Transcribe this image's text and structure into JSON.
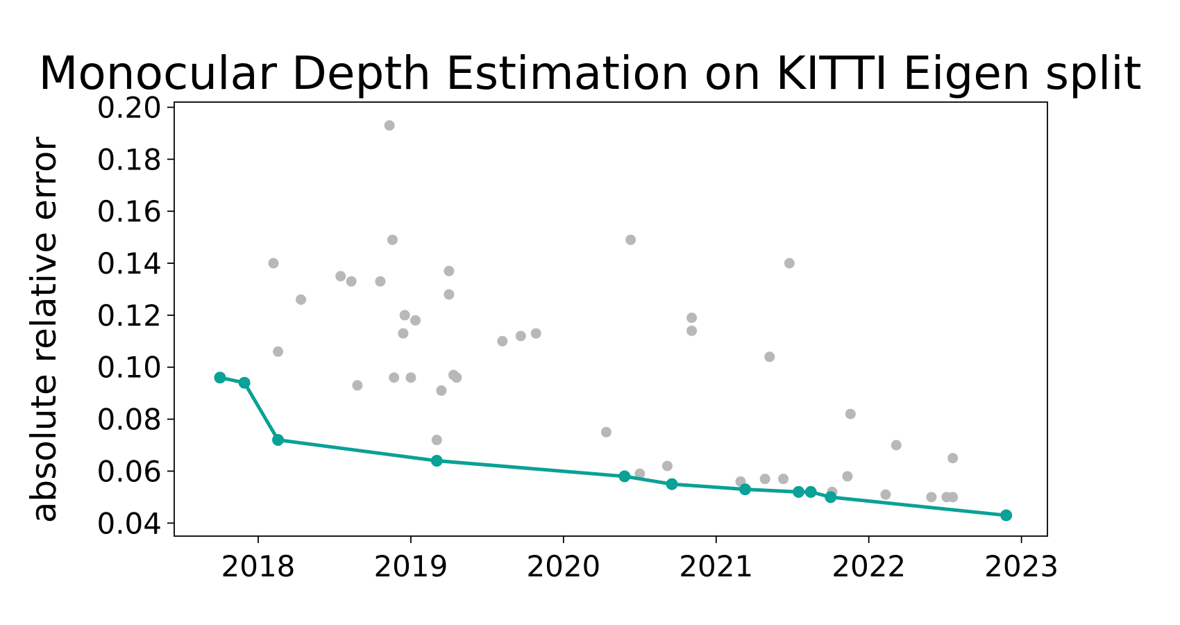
{
  "chart_data": {
    "type": "scatter",
    "title": "Monocular Depth Estimation on KITTI Eigen split",
    "xlabel": "",
    "ylabel": "absolute relative error",
    "xlim": [
      2017.45,
      2023.17
    ],
    "ylim": [
      0.035,
      0.202
    ],
    "x_ticks": [
      2018,
      2019,
      2020,
      2021,
      2022,
      2023
    ],
    "y_ticks": [
      0.04,
      0.06,
      0.08,
      0.1,
      0.12,
      0.14,
      0.16,
      0.18,
      0.2
    ],
    "y_tick_labels": [
      "0.04",
      "0.06",
      "0.08",
      "0.10",
      "0.12",
      "0.14",
      "0.16",
      "0.18",
      "0.20"
    ],
    "grid": false,
    "legend": "none",
    "colors": {
      "others": "#b8b8b8",
      "sota": "#0aa196"
    },
    "series": [
      {
        "kind": "scatter",
        "points": [
          [
            2018.1,
            0.14
          ],
          [
            2018.13,
            0.106
          ],
          [
            2018.28,
            0.126
          ],
          [
            2018.54,
            0.135
          ],
          [
            2018.61,
            0.133
          ],
          [
            2018.65,
            0.093
          ],
          [
            2018.8,
            0.133
          ],
          [
            2018.86,
            0.193
          ],
          [
            2018.88,
            0.149
          ],
          [
            2018.89,
            0.096
          ],
          [
            2018.95,
            0.113
          ],
          [
            2018.96,
            0.12
          ],
          [
            2019.0,
            0.096
          ],
          [
            2019.03,
            0.118
          ],
          [
            2019.17,
            0.072
          ],
          [
            2019.2,
            0.091
          ],
          [
            2019.25,
            0.137
          ],
          [
            2019.25,
            0.128
          ],
          [
            2019.28,
            0.097
          ],
          [
            2019.3,
            0.096
          ],
          [
            2019.6,
            0.11
          ],
          [
            2019.72,
            0.112
          ],
          [
            2019.82,
            0.113
          ],
          [
            2020.28,
            0.075
          ],
          [
            2020.44,
            0.149
          ],
          [
            2020.5,
            0.059
          ],
          [
            2020.68,
            0.062
          ],
          [
            2020.84,
            0.119
          ],
          [
            2020.84,
            0.114
          ],
          [
            2021.16,
            0.056
          ],
          [
            2021.32,
            0.057
          ],
          [
            2021.35,
            0.104
          ],
          [
            2021.44,
            0.057
          ],
          [
            2021.48,
            0.14
          ],
          [
            2021.76,
            0.052
          ],
          [
            2021.86,
            0.058
          ],
          [
            2021.88,
            0.082
          ],
          [
            2022.11,
            0.051
          ],
          [
            2022.18,
            0.07
          ],
          [
            2022.41,
            0.05
          ],
          [
            2022.51,
            0.05
          ],
          [
            2022.55,
            0.065
          ],
          [
            2022.55,
            0.05
          ]
        ]
      },
      {
        "kind": "line",
        "points": [
          [
            2017.75,
            0.096
          ],
          [
            2017.91,
            0.094
          ],
          [
            2018.13,
            0.072
          ],
          [
            2019.17,
            0.064
          ],
          [
            2020.4,
            0.058
          ],
          [
            2020.71,
            0.055
          ],
          [
            2021.19,
            0.053
          ],
          [
            2021.54,
            0.052
          ],
          [
            2021.62,
            0.052
          ],
          [
            2021.75,
            0.05
          ],
          [
            2022.9,
            0.043
          ]
        ]
      }
    ]
  }
}
